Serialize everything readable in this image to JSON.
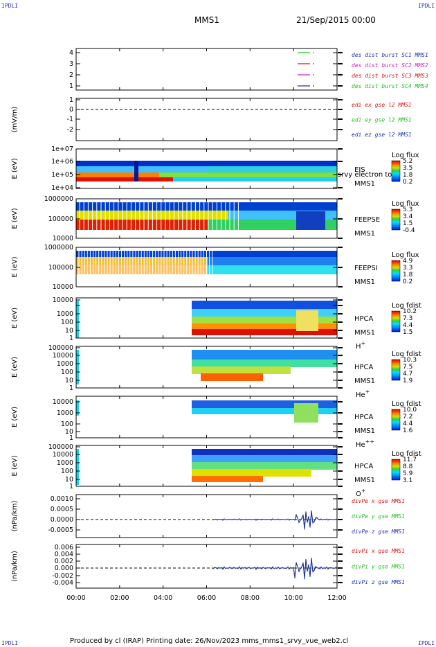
{
  "header": {
    "corner_tl": "IPDLI",
    "corner_tr": "IPDLI",
    "corner_bl": "IPDLI",
    "corner_br": "IPDLI",
    "mission": "MMS1",
    "datetime": "21/Sep/2015 00:00"
  },
  "footer": {
    "text": "Produced by cl (IRAP)   Printing date: 26/Nov/2023   mms_mms1_srvy_vue_web2.cl"
  },
  "colors": {
    "blue": "#1b2fb4",
    "magenta": "#d020d0",
    "red": "#e01010",
    "green": "#20c020"
  },
  "chart_data": {
    "type": "multi-panel time series and spectrograms",
    "x_tick_labels": [
      "00:00",
      "02:00",
      "04:00",
      "06:00",
      "08:00",
      "10:00",
      "12:00"
    ],
    "x_range_hours": [
      0,
      12
    ],
    "panels": [
      {
        "id": "burst",
        "type": "line",
        "ytick_labels": [
          "4",
          "3",
          "2",
          "1"
        ],
        "series": [
          {
            "name": "des dist burst SC1 MMS1",
            "color": "blue"
          },
          {
            "name": "des dist burst SC2 MMS2",
            "color": "magenta"
          },
          {
            "name": "des dist burst SC3 MMS3",
            "color": "red"
          },
          {
            "name": "des dist burst SC4 MMS4",
            "color": "green"
          }
        ]
      },
      {
        "id": "edi",
        "type": "line",
        "ylabel": "(mV/m)",
        "ytick_labels": [
          "1",
          "0",
          "-1",
          "-2"
        ],
        "series": [
          {
            "name": "edi ex gse l2 MMS1",
            "color": "red"
          },
          {
            "name": "edi ey gse l2 MMS1",
            "color": "green"
          },
          {
            "name": "edi ez gse l2 MMS1",
            "color": "blue"
          }
        ]
      },
      {
        "id": "eis",
        "type": "heatmap",
        "ylabel": "E (eV)",
        "ytick_labels": [
          "1e+07",
          "1e+06",
          "1e+05",
          "1e+04"
        ],
        "side_labels": [
          "EIS",
          "MMS1"
        ],
        "overlay_text": "srvy electron to",
        "colorbar_title": "Log flux",
        "colorbar_ticks": [
          "5.2",
          "3.5",
          "1.8",
          "0.2"
        ]
      },
      {
        "id": "feepse",
        "type": "heatmap",
        "ylabel": "E (eV)",
        "ytick_labels": [
          "1000000",
          "100000",
          "10000"
        ],
        "side_labels": [
          "FEEPSE",
          "MMS1"
        ],
        "colorbar_title": "Log flux",
        "colorbar_ticks": [
          "5.3",
          "3.4",
          "1.5",
          "-0.4"
        ]
      },
      {
        "id": "feepsi",
        "type": "heatmap",
        "ylabel": "E (eV)",
        "ytick_labels": [
          "1000000",
          "100000",
          "10000"
        ],
        "side_labels": [
          "FEEPSI",
          "MMS1"
        ],
        "colorbar_title": "Log flux",
        "colorbar_ticks": [
          "4.9",
          "3.3",
          "1.8",
          "0.2"
        ]
      },
      {
        "id": "hpca_h",
        "type": "heatmap",
        "ylabel": "E (eV)",
        "ytick_labels": [
          "10000",
          "1000",
          "100",
          "10",
          "1"
        ],
        "side_labels": [
          "HPCA",
          "MMS1"
        ],
        "species": "H",
        "species_sup": "+",
        "colorbar_title": "Log fdist",
        "colorbar_ticks": [
          "10.2",
          "7.3",
          "4.4",
          "1.5"
        ]
      },
      {
        "id": "hpca_he",
        "type": "heatmap",
        "ylabel": "E (eV)",
        "ytick_labels": [
          "100000",
          "10000",
          "1000",
          "100",
          "10",
          "1"
        ],
        "side_labels": [
          "HPCA",
          "MMS1"
        ],
        "species": "He",
        "species_sup": "+",
        "colorbar_title": "Log fdist",
        "colorbar_ticks": [
          "10.3",
          "7.5",
          "4.7",
          "1.9"
        ]
      },
      {
        "id": "hpca_hepp",
        "type": "heatmap",
        "ylabel": "E (eV)",
        "ytick_labels": [
          "10000",
          "1000",
          "100",
          "10",
          "1"
        ],
        "side_labels": [
          "HPCA",
          "MMS1"
        ],
        "species": "He",
        "species_sup": "++",
        "colorbar_title": "Log fdist",
        "colorbar_ticks": [
          "10.0",
          "7.2",
          "4.4",
          "1.6"
        ]
      },
      {
        "id": "hpca_o",
        "type": "heatmap",
        "ylabel": "E (eV)",
        "ytick_labels": [
          "100000",
          "10000",
          "1000",
          "100",
          "10",
          "1"
        ],
        "side_labels": [
          "HPCA",
          "MMS1"
        ],
        "species": "O",
        "species_sup": "+",
        "colorbar_title": "Log fdist",
        "colorbar_ticks": [
          "11.7",
          "8.8",
          "5.9",
          "3.1"
        ]
      },
      {
        "id": "divpe",
        "type": "line",
        "ylabel": "(nPa/km)",
        "ytick_labels": [
          "0.0010",
          "0.0005",
          "0.0000",
          "-0.0005"
        ],
        "series": [
          {
            "name": "divPe x gse MMS1",
            "color": "red"
          },
          {
            "name": "divPe y gse MMS1",
            "color": "green"
          },
          {
            "name": "divPe z gse MMS1",
            "color": "blue"
          }
        ]
      },
      {
        "id": "divpi",
        "type": "line",
        "ylabel": "(nPa/km)",
        "ytick_labels": [
          "0.006",
          "0.004",
          "0.002",
          "0.000",
          "-0.002",
          "-0.004"
        ],
        "series": [
          {
            "name": "divPi x gse MMS1",
            "color": "red"
          },
          {
            "name": "divPi y gse MMS1",
            "color": "green"
          },
          {
            "name": "divPi z gse MMS1",
            "color": "blue"
          }
        ]
      }
    ]
  }
}
